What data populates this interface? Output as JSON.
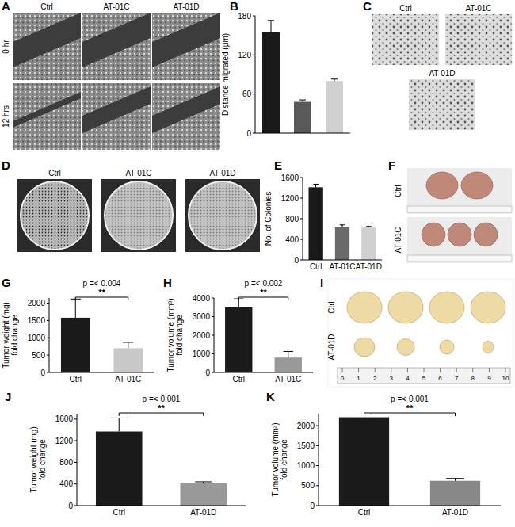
{
  "chart_data": [
    {
      "type": "bar",
      "panel": "B",
      "y_label": [
        "Distance migrated (μm)"
      ],
      "categories": [
        null,
        null,
        null
      ],
      "values": [
        155,
        48,
        80
      ],
      "errors": [
        18,
        3,
        3
      ],
      "colors": [
        "#1a1a1a",
        "#5a5a5a",
        "#d0d0d0"
      ],
      "ylim": [
        0,
        180
      ],
      "yticks": [
        0,
        60,
        120,
        180
      ],
      "grid": false
    },
    {
      "type": "bar",
      "panel": "E",
      "y_label": [
        "No. of Colonies"
      ],
      "categories": [
        "Ctrl",
        "AT-01C",
        "AT-01D"
      ],
      "values": [
        1410,
        640,
        630
      ],
      "errors": [
        60,
        40,
        20
      ],
      "colors": [
        "#1a1a1a",
        "#6a6a6a",
        "#d0d0d0"
      ],
      "ylim": [
        0,
        1600
      ],
      "yticks": [
        0,
        400,
        800,
        1200,
        1600
      ],
      "grid": false
    },
    {
      "type": "bar",
      "panel": "G",
      "y_label": [
        "Tumor weight (mg)",
        "fold change"
      ],
      "categories": [
        "Ctrl",
        "AT-01C"
      ],
      "values": [
        1580,
        700
      ],
      "errors": [
        540,
        170
      ],
      "colors": [
        "#1a1a1a",
        "#c8c8c8"
      ],
      "ylim": [
        0,
        2150
      ],
      "yticks": [
        0,
        500,
        1000,
        1500,
        2000
      ],
      "grid": false,
      "annotations": [
        "p =< 0.004",
        "**"
      ]
    },
    {
      "type": "bar",
      "panel": "H",
      "y_label": [
        "Tumor volume (mm³)",
        "fold change"
      ],
      "categories": [
        "Ctrl",
        "AT-01C"
      ],
      "values": [
        3500,
        800
      ],
      "errors": [
        500,
        330
      ],
      "colors": [
        "#1a1a1a",
        "#999999"
      ],
      "ylim": [
        0,
        4000
      ],
      "yticks": [
        0,
        1000,
        2000,
        3000,
        4000
      ],
      "grid": false,
      "annotations": [
        "p =< 0.002",
        "**"
      ]
    },
    {
      "type": "bar",
      "panel": "J",
      "y_label": [
        "Tumor weight (mg)",
        "fold change"
      ],
      "categories": [
        "Ctrl",
        "AT-01D"
      ],
      "values": [
        1370,
        410
      ],
      "errors": [
        250,
        30
      ],
      "colors": [
        "#1a1a1a",
        "#999999"
      ],
      "ylim": [
        0,
        1700
      ],
      "yticks": [
        0,
        400,
        800,
        1200,
        1600
      ],
      "grid": false,
      "annotations": [
        "p =< 0.001",
        "**"
      ]
    },
    {
      "type": "bar",
      "panel": "K",
      "y_label": [
        "Tumor volume (mm³)",
        "fold change"
      ],
      "categories": [
        "Ctrl",
        "AT-01D"
      ],
      "values": [
        2210,
        620
      ],
      "errors": [
        80,
        60
      ],
      "colors": [
        "#1a1a1a",
        "#888888"
      ],
      "ylim": [
        0,
        2300
      ],
      "yticks": [
        0,
        500,
        1000,
        1500,
        2000
      ],
      "grid": false,
      "annotations": [
        "p =< 0.001",
        "**"
      ]
    }
  ],
  "photo_panels": [
    {
      "panel": "A",
      "columns": [
        "Ctrl",
        "AT-01C",
        "AT-01D"
      ],
      "rows": [
        "0 hr",
        "12 hrs"
      ]
    },
    {
      "panel": "C",
      "labels": [
        "Ctrl",
        "AT-01C",
        "AT-01D"
      ]
    },
    {
      "panel": "D",
      "labels": [
        "Ctrl",
        "AT-01C",
        "AT-01D"
      ]
    },
    {
      "panel": "F",
      "labels": [
        "Ctrl",
        "AT-01C"
      ]
    },
    {
      "panel": "I",
      "labels": [
        "Ctrl",
        "AT-01D"
      ],
      "ruler": [
        0,
        1,
        2,
        3,
        4,
        5,
        6,
        7,
        8,
        9,
        10
      ]
    }
  ]
}
